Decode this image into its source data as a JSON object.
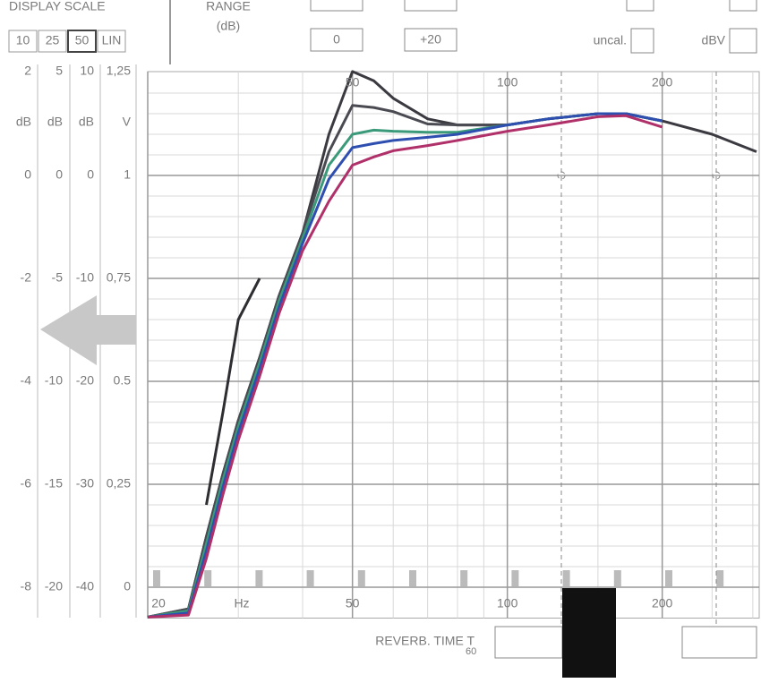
{
  "panel": {
    "display_scale": "DISPLAY SCALE",
    "scale_options": [
      "10",
      "25",
      "50",
      "LIN"
    ],
    "selected_scale": "50",
    "range_label": "RANGE",
    "range_unit": "(dB)",
    "range_values": [
      "0",
      "+20"
    ],
    "uncal": "uncal.",
    "dbv": "dBV",
    "reverb": "REVERB. TIME T",
    "reverb_sub": "60"
  },
  "chart_data": {
    "type": "line",
    "x_unit": "Hz",
    "x_log": true,
    "grid": true,
    "x": [
      20,
      24,
      26,
      28,
      30,
      33,
      36,
      40,
      45,
      50,
      55,
      60,
      70,
      80,
      100,
      120,
      150,
      170,
      200,
      250,
      305
    ],
    "xlim": [
      20,
      305
    ],
    "xticks": [
      20,
      50,
      100,
      200
    ],
    "xminor_ticks": [
      30,
      40,
      60,
      70,
      80,
      90,
      150,
      250,
      300
    ],
    "ylim": [
      -43,
      11
    ],
    "yticks": [
      10,
      0,
      -10,
      -20,
      -30,
      -40
    ],
    "y_unit": "dB",
    "yminor_ticks": [
      8,
      6,
      4,
      2,
      -2,
      -4,
      -6,
      -8,
      -12,
      -14,
      -16,
      -18,
      -22,
      -24,
      -26,
      -28,
      -32,
      -34,
      -36,
      -38
    ],
    "scales": [
      {
        "unit": "dB",
        "ticks": [
          2,
          0,
          -2,
          -4,
          -6,
          -8
        ]
      },
      {
        "unit": "dB",
        "ticks": [
          5,
          0,
          -5,
          -10,
          -15,
          -20
        ]
      },
      {
        "unit": "V",
        "ticks": [
          {
            "value": 1.25,
            "label": "1,25"
          },
          1,
          {
            "value": 0.75,
            "label": "0,75"
          },
          0.5,
          {
            "value": 0.25,
            "label": "0,25"
          },
          0
        ]
      }
    ],
    "series": [
      {
        "color": "#3a3a40",
        "values": [
          -42.9,
          -42.1,
          -35.1,
          -29.0,
          -23.8,
          -17.7,
          -11.7,
          -5.6,
          4.0,
          10.1,
          9.2,
          7.5,
          5.5,
          4.9,
          4.9,
          5.5,
          6.0,
          6.0,
          5.3,
          4.0,
          2.3
        ]
      },
      {
        "color": "#4a4a52",
        "values": [
          -42.9,
          -42.1,
          -35.1,
          -29.0,
          -23.8,
          -17.7,
          -11.7,
          -5.6,
          2.3,
          6.8,
          6.6,
          6.2,
          5.0,
          4.9,
          4.9,
          5.5,
          6.0,
          6.0,
          5.3,
          null,
          null
        ]
      },
      {
        "color": "#3a9a7a",
        "values": [
          -42.9,
          -42.3,
          -35.8,
          -29.6,
          -24.4,
          -18.2,
          -12.2,
          -6.1,
          1.0,
          4.0,
          4.4,
          4.3,
          4.2,
          4.2,
          4.9,
          5.5,
          6.0,
          6.0,
          5.3,
          null,
          null
        ]
      },
      {
        "color": "#2f4fb0",
        "values": [
          -42.9,
          -42.5,
          -36.5,
          -30.3,
          -25.0,
          -18.8,
          -12.8,
          -6.6,
          -0.35,
          2.7,
          3.1,
          3.4,
          3.7,
          4.0,
          4.9,
          5.5,
          6.0,
          6.0,
          5.3,
          null,
          null
        ]
      },
      {
        "color": "#b0306a",
        "values": [
          -42.9,
          -42.7,
          -37.2,
          -31.0,
          -25.7,
          -19.5,
          -13.4,
          -7.3,
          -2.5,
          1.0,
          1.8,
          2.4,
          2.9,
          3.4,
          4.3,
          4.9,
          5.7,
          5.8,
          4.7,
          null,
          null
        ]
      },
      {
        "color": "#2e2e32",
        "values": [
          null,
          null,
          -32.0,
          -23.0,
          -14.0,
          -10.0,
          null,
          null,
          null,
          null,
          null,
          null,
          null,
          null,
          null,
          null,
          null,
          null,
          null,
          null,
          null
        ]
      }
    ]
  }
}
